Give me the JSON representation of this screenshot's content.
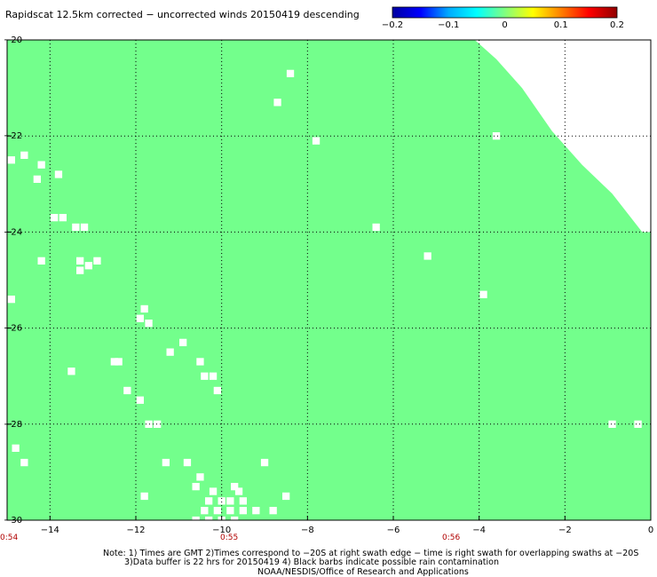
{
  "title": "Rapidscat 12.5km corrected − uncorrected winds 20150419 descending",
  "colorbar": {
    "ticks": [
      "−0.2",
      "−0.1",
      "0",
      "0.1",
      "0.2"
    ],
    "min": -0.2,
    "max": 0.2,
    "colors": [
      "#0000a0",
      "#0000ff",
      "#00aaff",
      "#00ffff",
      "#80ff80",
      "#ffff00",
      "#ff8000",
      "#ff0000",
      "#900000"
    ]
  },
  "times": [
    "0:54",
    "0:55",
    "0:56"
  ],
  "notes": [
    "Note: 1) Times are GMT 2)Times correspond to −20S at right swath edge − time is right swath for overlapping swaths at −20S",
    "3)Data buffer is 22 hrs for 20150419 4) Black barbs indicate possible rain contamination",
    "NOAA/NESDIS/Office of Research and Applications"
  ],
  "chart_data": {
    "type": "heatmap",
    "title": "Rapidscat 12.5km corrected − uncorrected winds 20150419 descending",
    "xlim": [
      -15,
      0
    ],
    "ylim": [
      -30,
      -20
    ],
    "xticks": [
      -14,
      -12,
      -10,
      -8,
      -6,
      -4,
      -2,
      0
    ],
    "yticks": [
      -20,
      -22,
      -24,
      -26,
      -28,
      -30
    ],
    "xtick_labels": [
      "−14",
      "−12",
      "−10",
      "−8",
      "−6",
      "−4",
      "−2",
      "0"
    ],
    "ytick_labels": [
      "−20",
      "−22",
      "−24",
      "−26",
      "−28",
      "−30"
    ],
    "grid": "dotted",
    "field_value": 0.0,
    "field_color": "#73ff8c",
    "swath_edge_no_data": [
      [
        -4.1,
        -20.0
      ],
      [
        -3.6,
        -20.4
      ],
      [
        -3.0,
        -21.0
      ],
      [
        -2.3,
        -21.9
      ],
      [
        -1.6,
        -22.6
      ],
      [
        -0.9,
        -23.2
      ],
      [
        -0.2,
        -24.0
      ],
      [
        0.0,
        -24.0
      ],
      [
        0.0,
        -20.0
      ]
    ],
    "no_data_blocks": [
      [
        -8.4,
        -20.7
      ],
      [
        -8.7,
        -21.3
      ],
      [
        -7.8,
        -22.1
      ],
      [
        -3.6,
        -22.0
      ],
      [
        -14.9,
        -22.5
      ],
      [
        -14.6,
        -22.4
      ],
      [
        -14.2,
        -22.6
      ],
      [
        -14.3,
        -22.9
      ],
      [
        -13.8,
        -22.8
      ],
      [
        -13.9,
        -23.7
      ],
      [
        -13.7,
        -23.7
      ],
      [
        -13.4,
        -23.9
      ],
      [
        -13.2,
        -23.9
      ],
      [
        -6.4,
        -23.9
      ],
      [
        -5.2,
        -24.5
      ],
      [
        -14.2,
        -24.6
      ],
      [
        -13.3,
        -24.6
      ],
      [
        -13.1,
        -24.7
      ],
      [
        -12.9,
        -24.6
      ],
      [
        -13.3,
        -24.8
      ],
      [
        -14.9,
        -25.4
      ],
      [
        -3.9,
        -25.3
      ],
      [
        -11.8,
        -25.6
      ],
      [
        -11.9,
        -25.8
      ],
      [
        -11.7,
        -25.9
      ],
      [
        -10.9,
        -26.3
      ],
      [
        -11.2,
        -26.5
      ],
      [
        -12.5,
        -26.7
      ],
      [
        -12.4,
        -26.7
      ],
      [
        -10.5,
        -26.7
      ],
      [
        -13.5,
        -26.9
      ],
      [
        -10.4,
        -27.0
      ],
      [
        -10.2,
        -27.0
      ],
      [
        -10.1,
        -27.3
      ],
      [
        -12.2,
        -27.3
      ],
      [
        -11.9,
        -27.5
      ],
      [
        -11.7,
        -28.0
      ],
      [
        -11.5,
        -28.0
      ],
      [
        -0.9,
        -28.0
      ],
      [
        -0.3,
        -28.0
      ],
      [
        -14.8,
        -28.5
      ],
      [
        -14.6,
        -28.8
      ],
      [
        -11.3,
        -28.8
      ],
      [
        -10.8,
        -28.8
      ],
      [
        -9.0,
        -28.8
      ],
      [
        -10.5,
        -29.1
      ],
      [
        -10.6,
        -29.3
      ],
      [
        -10.2,
        -29.4
      ],
      [
        -9.7,
        -29.3
      ],
      [
        -9.6,
        -29.4
      ],
      [
        -10.3,
        -29.6
      ],
      [
        -10.0,
        -29.6
      ],
      [
        -9.8,
        -29.6
      ],
      [
        -9.5,
        -29.6
      ],
      [
        -11.8,
        -29.5
      ],
      [
        -8.5,
        -29.5
      ],
      [
        -10.4,
        -29.8
      ],
      [
        -10.1,
        -29.8
      ],
      [
        -9.8,
        -29.8
      ],
      [
        -9.5,
        -29.8
      ],
      [
        -9.2,
        -29.8
      ],
      [
        -8.8,
        -29.8
      ],
      [
        -10.6,
        -30.0
      ],
      [
        -10.3,
        -30.0
      ],
      [
        -10.0,
        -30.0
      ],
      [
        -9.7,
        -30.0
      ]
    ]
  }
}
